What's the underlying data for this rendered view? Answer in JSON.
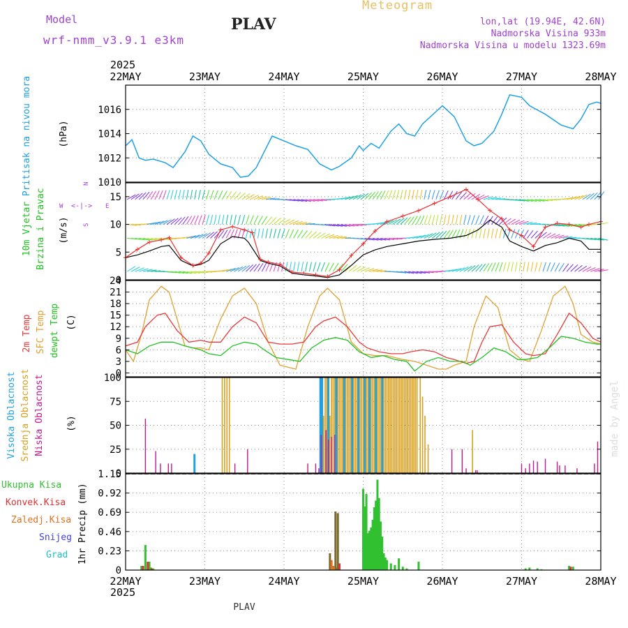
{
  "header": {
    "model_label": "Model",
    "model_name": "wrf-nmm_v3.9.1 e3km",
    "station": "PLAV",
    "title": "Meteogram",
    "lonlat": "lon,lat (19.94E, 42.6N)",
    "altitude": "Nadmorska Visina 933m",
    "model_altitude": "Nadmorska Visina u modelu 1323.69m"
  },
  "footer": {
    "station": "PLAV",
    "credit": "made by Angel"
  },
  "colors": {
    "pressure": "#1ea0e6",
    "wind_speed": "#000000",
    "gust": "#e83030",
    "temp2m": "#e83838",
    "sfc_temp": "#e0a030",
    "dewpt": "#20c020",
    "high_cloud": "#20a0e0",
    "mid_cloud": "#d8a020",
    "low_cloud": "#c01890",
    "total_precip": "#30c030",
    "conv_precip": "#e03030",
    "freezing": "#e07020",
    "snow": "#4040e0",
    "hail": "#20c0c0"
  },
  "chart_data": [
    {
      "type": "line",
      "panel": "pressure",
      "ylabel_name": "Pritisak na nivou mora",
      "units": "(hPa)",
      "ylim": [
        1010,
        1018
      ],
      "yticks": [
        "1010",
        "1012",
        "1014",
        "1016"
      ],
      "year": "2025",
      "xticks": [
        "22MAY",
        "23MAY",
        "24MAY",
        "25MAY",
        "26MAY",
        "27MAY",
        "28MAY"
      ],
      "x_days": [
        0,
        0.08,
        0.17,
        0.25,
        0.35,
        0.5,
        0.6,
        0.75,
        0.85,
        0.95,
        1.05,
        1.2,
        1.35,
        1.45,
        1.55,
        1.65,
        1.75,
        1.85,
        2.0,
        2.15,
        2.3,
        2.45,
        2.6,
        2.7,
        2.85,
        2.95,
        3.0,
        3.1,
        3.2,
        3.35,
        3.45,
        3.55,
        3.65,
        3.75,
        3.85,
        4.0,
        4.15,
        4.3,
        4.4,
        4.5,
        4.65,
        4.75,
        4.85,
        5.0,
        5.1,
        5.3,
        5.5,
        5.65,
        5.75,
        5.85,
        5.95,
        6.0
      ],
      "values": [
        1013,
        1013.5,
        1012,
        1011.8,
        1011.9,
        1011.6,
        1011.2,
        1012.5,
        1013.8,
        1013.4,
        1012.3,
        1011.5,
        1011.2,
        1010.4,
        1010.5,
        1011.2,
        1012.5,
        1013.8,
        1013.4,
        1013,
        1012.7,
        1011.5,
        1011,
        1011.3,
        1012,
        1013,
        1012.6,
        1013.2,
        1012.8,
        1014.2,
        1014.8,
        1014,
        1013.8,
        1014.8,
        1015.4,
        1016.3,
        1015.4,
        1013.4,
        1013,
        1013.2,
        1014.2,
        1015.6,
        1017.2,
        1017,
        1016.3,
        1015.6,
        1014.7,
        1014.4,
        1015.2,
        1016.4,
        1016.6,
        1016.5
      ]
    },
    {
      "type": "line",
      "panel": "wind",
      "ylabel_name": "10m Vjetar",
      "ylabel_name2": "Brzina i Pravac",
      "units": "(m/s)",
      "compass": {
        "n": "N",
        "s": "S",
        "w": "W",
        "e": "E"
      },
      "ylim": [
        0,
        17.5
      ],
      "yticks": [
        "0",
        "5",
        "10",
        "15"
      ],
      "series": [
        {
          "name": "wind speed",
          "x_days": [
            0,
            0.15,
            0.3,
            0.45,
            0.55,
            0.7,
            0.85,
            0.95,
            1.05,
            1.2,
            1.35,
            1.5,
            1.55,
            1.7,
            1.8,
            1.95,
            2.1,
            2.25,
            2.4,
            2.55,
            2.7,
            2.85,
            3.0,
            3.15,
            3.3,
            3.5,
            3.7,
            3.9,
            4.1,
            4.3,
            4.45,
            4.6,
            4.75,
            4.85,
            5.0,
            5.15,
            5.3,
            5.45,
            5.6,
            5.75,
            5.85,
            6.0
          ],
          "values": [
            4,
            4.5,
            5.2,
            6,
            6.2,
            3.5,
            2.5,
            2.8,
            3.5,
            6.5,
            7.8,
            7.5,
            6.8,
            3.5,
            3,
            2.5,
            1.2,
            0.9,
            0.7,
            0.4,
            0.9,
            2.6,
            4.5,
            5.4,
            6,
            6.5,
            7,
            7.3,
            7.5,
            8,
            9,
            10.8,
            9.5,
            7,
            6,
            5.2,
            6.2,
            6.7,
            7.5,
            7,
            5.5,
            5.5
          ]
        },
        {
          "name": "gust",
          "x_days": [
            0,
            0.15,
            0.3,
            0.45,
            0.55,
            0.7,
            0.85,
            0.95,
            1.05,
            1.2,
            1.35,
            1.5,
            1.6,
            1.7,
            1.8,
            1.95,
            2.1,
            2.25,
            2.4,
            2.55,
            2.7,
            2.85,
            3.0,
            3.15,
            3.3,
            3.5,
            3.7,
            3.9,
            4.1,
            4.3,
            4.45,
            4.6,
            4.75,
            4.85,
            5.0,
            5.15,
            5.3,
            5.45,
            5.6,
            5.75,
            5.85,
            6.0
          ],
          "values": [
            4,
            5.5,
            6.8,
            7.2,
            7.6,
            4,
            2.6,
            3,
            4.8,
            9,
            9.6,
            9,
            8.5,
            3.7,
            3.2,
            2.8,
            1.4,
            1.2,
            0.9,
            0.6,
            1.8,
            4.4,
            6.5,
            8.8,
            10.5,
            11.5,
            12.5,
            13.8,
            15,
            16.3,
            14.5,
            12.5,
            11,
            9,
            8,
            6,
            9.5,
            10.2,
            10,
            9.5,
            10,
            10.5
          ]
        }
      ]
    },
    {
      "type": "line",
      "panel": "temperature",
      "ylabel_name": "2m Temp",
      "ylabel_name2": "SFC Temp",
      "ylabel_name3": "dewpt Temp",
      "units": "(C)",
      "ylim": [
        -1,
        24
      ],
      "yticks": [
        "0",
        "3",
        "6",
        "9",
        "12",
        "15",
        "18",
        "21",
        "24"
      ],
      "series": [
        {
          "name": "2m Temp",
          "x_days": [
            0,
            0.15,
            0.25,
            0.4,
            0.5,
            0.65,
            0.8,
            0.95,
            1.05,
            1.2,
            1.35,
            1.5,
            1.65,
            1.8,
            1.95,
            2.1,
            2.25,
            2.4,
            2.5,
            2.65,
            2.8,
            2.95,
            3.05,
            3.2,
            3.35,
            3.5,
            3.6,
            3.75,
            3.9,
            4.05,
            4.15,
            4.3,
            4.4,
            4.5,
            4.6,
            4.75,
            4.9,
            5.05,
            5.15,
            5.3,
            5.45,
            5.6,
            5.75,
            5.9,
            6.0
          ],
          "values": [
            7,
            8,
            12,
            15,
            15.5,
            11,
            8,
            8.5,
            8,
            8,
            12,
            14.5,
            13,
            8,
            7.5,
            7.5,
            8,
            12,
            13.5,
            14.5,
            12,
            8,
            6.5,
            5.5,
            5,
            5,
            5.5,
            6,
            5.5,
            4,
            3.5,
            2.5,
            3,
            8,
            12,
            12.5,
            8,
            5,
            4.5,
            5,
            10,
            15.5,
            13,
            9,
            8
          ]
        },
        {
          "name": "SFC Temp",
          "x_days": [
            0,
            0.1,
            0.2,
            0.3,
            0.45,
            0.55,
            0.65,
            0.75,
            0.85,
            0.95,
            1.05,
            1.2,
            1.35,
            1.5,
            1.65,
            1.8,
            1.95,
            2.05,
            2.15,
            2.3,
            2.45,
            2.55,
            2.7,
            2.85,
            3.0,
            3.15,
            3.3,
            3.5,
            3.65,
            3.8,
            3.95,
            4.05,
            4.15,
            4.3,
            4.4,
            4.55,
            4.7,
            4.85,
            5.0,
            5.1,
            5.25,
            5.4,
            5.55,
            5.65,
            5.75,
            5.9,
            6.0
          ],
          "values": [
            6,
            3,
            10,
            19,
            22.5,
            21,
            14,
            7,
            6.5,
            6.5,
            6,
            14,
            20,
            22,
            18,
            8,
            2,
            1.5,
            1,
            12,
            20,
            22,
            19,
            8,
            5,
            4.5,
            4.5,
            3.5,
            3,
            2,
            1,
            1,
            2,
            3,
            12,
            20,
            17,
            6,
            3.5,
            3,
            11,
            20,
            22.5,
            18,
            10,
            8,
            7.5
          ]
        },
        {
          "name": "dewpt Temp",
          "x_days": [
            0,
            0.15,
            0.3,
            0.45,
            0.6,
            0.75,
            0.85,
            0.95,
            1.05,
            1.2,
            1.35,
            1.5,
            1.65,
            1.75,
            1.9,
            2.05,
            2.2,
            2.35,
            2.5,
            2.65,
            2.8,
            2.95,
            3.1,
            3.25,
            3.4,
            3.55,
            3.65,
            3.8,
            3.95,
            4.1,
            4.25,
            4.35,
            4.5,
            4.65,
            4.8,
            4.95,
            5.05,
            5.2,
            5.35,
            5.5,
            5.65,
            5.8,
            5.95,
            6.0
          ],
          "values": [
            6,
            5,
            7,
            8,
            8,
            7,
            6.5,
            6,
            5,
            4.5,
            7,
            8,
            7.5,
            6,
            4,
            3.5,
            3,
            6.5,
            8.5,
            9.2,
            8.5,
            5.5,
            4,
            4.5,
            3.5,
            3,
            0.5,
            3,
            4,
            3,
            3,
            2,
            4,
            6.5,
            5.5,
            3.5,
            3.5,
            4,
            6.5,
            9.5,
            9,
            8,
            7.5,
            7.5
          ]
        }
      ]
    },
    {
      "type": "bar",
      "panel": "cloud",
      "ylabel_name": "Visoka Oblacnost",
      "ylabel_name2": "Srednja Oblacnost",
      "ylabel_name3": "Niska Oblacnost",
      "units": "(%)",
      "ylim": [
        0,
        100
      ],
      "yticks": [
        "0",
        "25",
        "50",
        "75",
        "100"
      ],
      "series": [
        {
          "name": "Visoka Oblacnost",
          "x_days": [
            0.87,
            2.46,
            2.48,
            2.56,
            2.66,
            2.76,
            2.86,
            2.94,
            3.02,
            3.08,
            3.16,
            3.24
          ],
          "values": [
            20,
            100,
            100,
            100,
            100,
            100,
            100,
            100,
            100,
            100,
            100,
            100
          ]
        },
        {
          "name": "Srednja Oblacnost",
          "x_days": [
            1.22,
            1.25,
            1.28,
            1.31,
            2.5,
            2.52,
            2.54,
            2.58,
            2.6,
            2.62,
            2.64,
            2.68,
            2.7,
            2.72,
            2.74,
            2.78,
            2.8,
            2.82,
            2.84,
            2.88,
            2.9,
            2.92,
            2.96,
            2.98,
            3.0,
            3.04,
            3.06,
            3.1,
            3.12,
            3.14,
            3.18,
            3.2,
            3.22,
            3.26,
            3.28,
            3.3,
            3.32,
            3.34,
            3.36,
            3.38,
            3.4,
            3.42,
            3.44,
            3.46,
            3.48,
            3.5,
            3.52,
            3.54,
            3.56,
            3.58,
            3.6,
            3.62,
            3.64,
            3.66,
            3.68,
            3.72,
            3.75,
            3.78,
            3.82,
            4.38
          ],
          "values": [
            100,
            100,
            100,
            100,
            60,
            100,
            100,
            60,
            100,
            100,
            100,
            100,
            100,
            100,
            100,
            100,
            100,
            100,
            100,
            100,
            100,
            100,
            100,
            100,
            100,
            100,
            100,
            100,
            100,
            100,
            100,
            100,
            100,
            100,
            100,
            100,
            100,
            100,
            100,
            100,
            100,
            100,
            100,
            100,
            100,
            100,
            100,
            100,
            100,
            100,
            100,
            100,
            100,
            100,
            100,
            100,
            80,
            60,
            30,
            45
          ]
        },
        {
          "name": "Niska Oblacnost",
          "x_days": [
            0.25,
            0.38,
            0.44,
            0.54,
            0.58,
            1.38,
            1.54,
            2.3,
            2.4,
            2.44,
            2.47,
            2.53,
            2.56,
            2.6,
            2.64,
            4.12,
            4.25,
            4.3,
            4.42,
            4.44,
            5.0,
            5.05,
            5.1,
            5.15,
            5.2,
            5.3,
            5.45,
            5.48,
            5.55,
            5.7,
            5.92,
            5.96
          ],
          "values": [
            57,
            23,
            10,
            10,
            10,
            10,
            25,
            10,
            10,
            5,
            40,
            45,
            35,
            38,
            40,
            25,
            25,
            5,
            3,
            3,
            10,
            5,
            10,
            13,
            12,
            15,
            12,
            8,
            8,
            5,
            10,
            33
          ]
        }
      ]
    },
    {
      "type": "bar",
      "panel": "precipitation",
      "ylabel_name": "1hr Precip",
      "units": "(mm)",
      "legend": [
        "Ukupna Kisa",
        "Konvek.Kisa",
        "Zaledj.Kisa",
        "Snijeg",
        "Grad"
      ],
      "ylim": [
        0,
        1.15
      ],
      "yticks": [
        "0",
        "0.23",
        "0.46",
        "0.69",
        "0.92",
        "1.15"
      ],
      "series": [
        {
          "name": "Ukupna Kisa",
          "x_days": [
            0.2,
            0.25,
            0.28,
            0.3,
            0.32,
            0.35,
            2.62,
            2.66,
            3.0,
            3.02,
            3.04,
            3.06,
            3.08,
            3.1,
            3.12,
            3.14,
            3.16,
            3.18,
            3.2,
            3.22,
            3.24,
            3.26,
            3.28,
            3.3,
            3.35,
            3.4,
            3.45,
            3.5,
            3.55,
            3.7,
            5.05,
            5.1,
            5.2,
            5.25,
            5.6,
            5.65
          ],
          "values": [
            0.05,
            0.3,
            0.02,
            0.1,
            0.03,
            0.02,
            0.05,
            0.03,
            0.97,
            0.76,
            0.91,
            0.44,
            0.47,
            0.51,
            0.6,
            0.75,
            0.83,
            1.08,
            0.86,
            0.58,
            0.4,
            0.2,
            0.15,
            0.12,
            0.08,
            0.06,
            0.14,
            0.04,
            0.02,
            0.1,
            0.02,
            0.03,
            0.02,
            0.01,
            0.05,
            0.04
          ]
        },
        {
          "name": "Konvek.Kisa",
          "x_days": [
            0.22,
            0.28,
            0.33,
            2.58,
            2.65,
            2.68,
            2.7,
            5.62
          ],
          "values": [
            0.05,
            0.1,
            0.02,
            0.2,
            0.7,
            0.68,
            0.08,
            0.04
          ]
        },
        {
          "name": "Zaledj.Kisa",
          "x_days": [
            2.6,
            2.63
          ],
          "values": [
            0.12,
            0.05
          ]
        }
      ]
    }
  ]
}
